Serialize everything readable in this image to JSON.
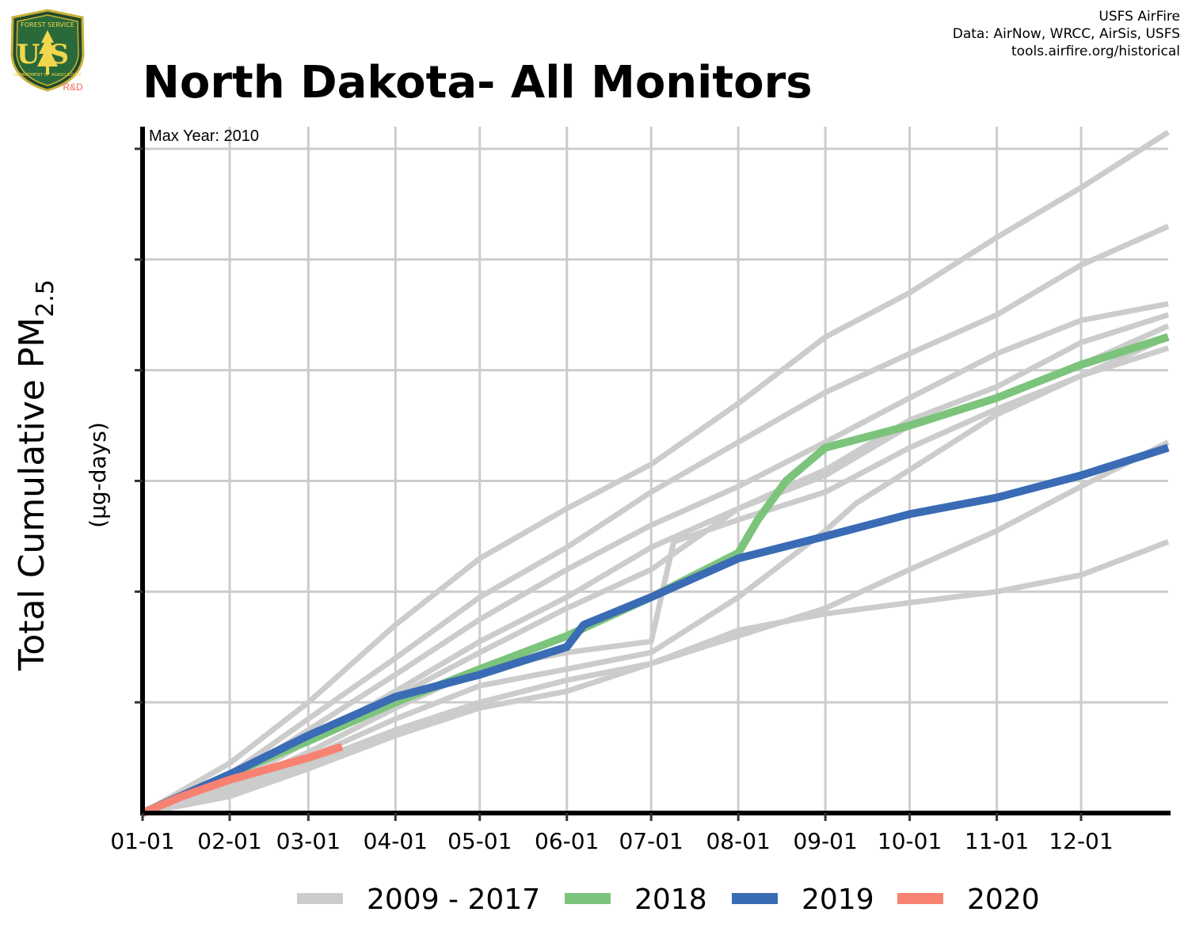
{
  "header": {
    "title": "North Dakota- All Monitors",
    "credits": [
      "USFS AirFire",
      "Data: AirNow, WRCC, AirSis, USFS",
      "tools.airfire.org/historical"
    ]
  },
  "logo": {
    "text_top": "FOREST SERVICE",
    "text_mid": "US",
    "text_bottom": "DEPARTMENT OF AGRICULTURE",
    "badge": "R&D"
  },
  "colors": {
    "history": "#cccccc",
    "y2018": "#7cc47c",
    "y2019": "#3a6bb5",
    "y2020": "#f88272",
    "badge": "#f06b55"
  },
  "chart_data": {
    "type": "line",
    "title": "North Dakota- All Monitors",
    "annotation": "Max Year: 2010",
    "ylabel": "Total Cumulative PM",
    "ylabel_subscript": "2.5",
    "ylabel_units": "(µg-days)",
    "xlabel": "",
    "x_ticks": [
      "01-01",
      "02-01",
      "03-01",
      "04-01",
      "05-01",
      "06-01",
      "07-01",
      "08-01",
      "09-01",
      "10-01",
      "11-01",
      "12-01"
    ],
    "x_tick_days": [
      1,
      32,
      60,
      91,
      121,
      152,
      182,
      213,
      244,
      274,
      305,
      335
    ],
    "xlim": [
      1,
      366
    ],
    "ylim": [
      0,
      6.2
    ],
    "y_gridlines": [
      1,
      2,
      3,
      4,
      5,
      6
    ],
    "y_tick_labels_shown": false,
    "grid": true,
    "legend_position": "bottom",
    "legend": [
      {
        "label": "2009 - 2017",
        "color_key": "history"
      },
      {
        "label": "2018",
        "color_key": "y2018"
      },
      {
        "label": "2019",
        "color_key": "y2019"
      },
      {
        "label": "2020",
        "color_key": "y2020"
      }
    ],
    "series": [
      {
        "group": "history",
        "points": [
          [
            1,
            0
          ],
          [
            32,
            0.45
          ],
          [
            60,
            1
          ],
          [
            91,
            1.7
          ],
          [
            121,
            2.3
          ],
          [
            152,
            2.75
          ],
          [
            182,
            3.15
          ],
          [
            213,
            3.7
          ],
          [
            244,
            4.3
          ],
          [
            274,
            4.7
          ],
          [
            305,
            5.2
          ],
          [
            335,
            5.65
          ],
          [
            366,
            6.15
          ]
        ]
      },
      {
        "group": "history",
        "points": [
          [
            1,
            0
          ],
          [
            32,
            0.35
          ],
          [
            60,
            0.85
          ],
          [
            91,
            1.4
          ],
          [
            121,
            1.95
          ],
          [
            152,
            2.4
          ],
          [
            182,
            2.9
          ],
          [
            213,
            3.35
          ],
          [
            244,
            3.8
          ],
          [
            274,
            4.15
          ],
          [
            305,
            4.5
          ],
          [
            335,
            4.95
          ],
          [
            366,
            5.3
          ]
        ]
      },
      {
        "group": "history",
        "points": [
          [
            1,
            0
          ],
          [
            32,
            0.3
          ],
          [
            60,
            0.75
          ],
          [
            91,
            1.25
          ],
          [
            121,
            1.75
          ],
          [
            152,
            2.2
          ],
          [
            182,
            2.6
          ],
          [
            213,
            2.95
          ],
          [
            244,
            3.35
          ],
          [
            274,
            3.75
          ],
          [
            305,
            4.15
          ],
          [
            335,
            4.45
          ],
          [
            366,
            4.6
          ]
        ]
      },
      {
        "group": "history",
        "points": [
          [
            1,
            0
          ],
          [
            32,
            0.3
          ],
          [
            60,
            0.65
          ],
          [
            91,
            1.1
          ],
          [
            121,
            1.55
          ],
          [
            152,
            1.95
          ],
          [
            182,
            2.4
          ],
          [
            213,
            2.75
          ],
          [
            244,
            3.1
          ],
          [
            274,
            3.55
          ],
          [
            305,
            3.85
          ],
          [
            335,
            4.25
          ],
          [
            366,
            4.5
          ]
        ]
      },
      {
        "group": "history",
        "points": [
          [
            1,
            0
          ],
          [
            32,
            0.25
          ],
          [
            60,
            0.65
          ],
          [
            91,
            1.05
          ],
          [
            121,
            1.45
          ],
          [
            152,
            1.85
          ],
          [
            182,
            2.2
          ],
          [
            213,
            2.75
          ],
          [
            244,
            3.05
          ],
          [
            274,
            3.5
          ],
          [
            305,
            3.75
          ],
          [
            335,
            4.05
          ],
          [
            366,
            4.4
          ]
        ]
      },
      {
        "group": "history",
        "points": [
          [
            1,
            0
          ],
          [
            32,
            0.22
          ],
          [
            60,
            0.55
          ],
          [
            91,
            0.95
          ],
          [
            121,
            1.3
          ],
          [
            152,
            1.45
          ],
          [
            182,
            1.55
          ],
          [
            190,
            2.45
          ],
          [
            213,
            2.65
          ],
          [
            244,
            2.9
          ],
          [
            274,
            3.3
          ],
          [
            305,
            3.65
          ],
          [
            335,
            3.95
          ],
          [
            366,
            4.3
          ]
        ]
      },
      {
        "group": "history",
        "points": [
          [
            1,
            0
          ],
          [
            32,
            0.2
          ],
          [
            60,
            0.5
          ],
          [
            91,
            0.85
          ],
          [
            121,
            1.15
          ],
          [
            152,
            1.3
          ],
          [
            182,
            1.45
          ],
          [
            213,
            1.95
          ],
          [
            244,
            2.55
          ],
          [
            255,
            2.8
          ],
          [
            274,
            3.1
          ],
          [
            305,
            3.6
          ],
          [
            335,
            3.95
          ],
          [
            366,
            4.2
          ]
        ]
      },
      {
        "group": "history",
        "points": [
          [
            1,
            0
          ],
          [
            32,
            0.18
          ],
          [
            60,
            0.45
          ],
          [
            91,
            0.75
          ],
          [
            121,
            1.0
          ],
          [
            152,
            1.2
          ],
          [
            182,
            1.35
          ],
          [
            213,
            1.6
          ],
          [
            244,
            1.85
          ],
          [
            274,
            2.2
          ],
          [
            305,
            2.55
          ],
          [
            335,
            2.95
          ],
          [
            366,
            3.35
          ]
        ]
      },
      {
        "group": "history",
        "points": [
          [
            1,
            0
          ],
          [
            32,
            0.15
          ],
          [
            60,
            0.4
          ],
          [
            91,
            0.7
          ],
          [
            121,
            0.95
          ],
          [
            152,
            1.1
          ],
          [
            182,
            1.35
          ],
          [
            213,
            1.65
          ],
          [
            244,
            1.8
          ],
          [
            274,
            1.9
          ],
          [
            305,
            2.0
          ],
          [
            335,
            2.15
          ],
          [
            366,
            2.45
          ]
        ]
      },
      {
        "group": "y2018",
        "name": "2018",
        "points": [
          [
            1,
            0
          ],
          [
            32,
            0.35
          ],
          [
            60,
            0.65
          ],
          [
            91,
            1.0
          ],
          [
            121,
            1.3
          ],
          [
            152,
            1.6
          ],
          [
            182,
            1.95
          ],
          [
            213,
            2.35
          ],
          [
            220,
            2.65
          ],
          [
            230,
            3.0
          ],
          [
            244,
            3.3
          ],
          [
            274,
            3.5
          ],
          [
            305,
            3.75
          ],
          [
            335,
            4.05
          ],
          [
            366,
            4.3
          ]
        ]
      },
      {
        "group": "y2019",
        "name": "2019",
        "points": [
          [
            1,
            0
          ],
          [
            32,
            0.35
          ],
          [
            60,
            0.7
          ],
          [
            91,
            1.05
          ],
          [
            121,
            1.25
          ],
          [
            152,
            1.5
          ],
          [
            158,
            1.7
          ],
          [
            182,
            1.95
          ],
          [
            213,
            2.3
          ],
          [
            244,
            2.5
          ],
          [
            274,
            2.7
          ],
          [
            305,
            2.85
          ],
          [
            335,
            3.05
          ],
          [
            366,
            3.3
          ]
        ]
      },
      {
        "group": "y2020",
        "name": "2020",
        "points": [
          [
            1,
            0
          ],
          [
            15,
            0.15
          ],
          [
            32,
            0.3
          ],
          [
            60,
            0.5
          ],
          [
            72,
            0.6
          ]
        ]
      }
    ]
  }
}
